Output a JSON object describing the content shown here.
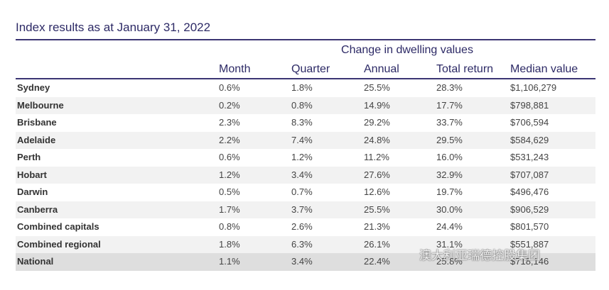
{
  "title": "Index results as at January 31, 2022",
  "table": {
    "group_header": "Change in dwelling values",
    "columns": [
      "Month",
      "Quarter",
      "Annual",
      "Total return",
      "Median value"
    ],
    "rows": [
      [
        "Sydney",
        "0.6%",
        "1.8%",
        "25.5%",
        "28.3%",
        "$1,106,279"
      ],
      [
        "Melbourne",
        "0.2%",
        "0.8%",
        "14.9%",
        "17.7%",
        "$798,881"
      ],
      [
        "Brisbane",
        "2.3%",
        "8.3%",
        "29.2%",
        "33.7%",
        "$706,594"
      ],
      [
        "Adelaide",
        "2.2%",
        "7.4%",
        "24.8%",
        "29.5%",
        "$584,629"
      ],
      [
        "Perth",
        "0.6%",
        "1.2%",
        "11.2%",
        "16.0%",
        "$531,243"
      ],
      [
        "Hobart",
        "1.2%",
        "3.4%",
        "27.6%",
        "32.9%",
        "$707,087"
      ],
      [
        "Darwin",
        "0.5%",
        "0.7%",
        "12.6%",
        "19.7%",
        "$496,476"
      ],
      [
        "Canberra",
        "1.7%",
        "3.7%",
        "25.5%",
        "30.0%",
        "$906,529"
      ],
      [
        "Combined capitals",
        "0.8%",
        "2.6%",
        "21.3%",
        "24.4%",
        "$801,570"
      ],
      [
        "Combined regional",
        "1.8%",
        "6.3%",
        "26.1%",
        "31.1%",
        "$551,887"
      ],
      [
        "National",
        "1.1%",
        "3.4%",
        "22.4%",
        "25.8%",
        "$718,146"
      ]
    ]
  },
  "watermark": "澳大利亚瑞德控股集团"
}
